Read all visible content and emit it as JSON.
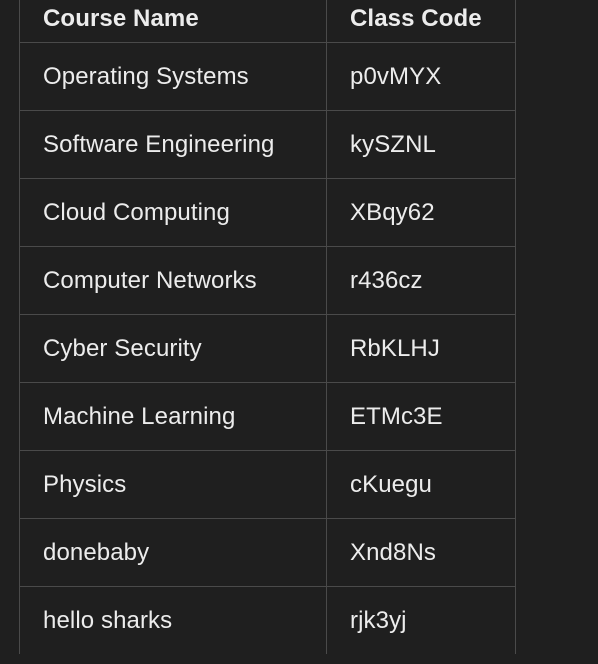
{
  "table": {
    "headers": [
      "Course Name",
      "Class Code"
    ],
    "rows": [
      [
        "Operating Systems",
        "p0vMYX"
      ],
      [
        "Software Engineering",
        "kySZNL"
      ],
      [
        "Cloud Computing",
        "XBqy62"
      ],
      [
        "Computer Networks",
        "r436cz"
      ],
      [
        "Cyber Security",
        "RbKLHJ"
      ],
      [
        "Machine Learning",
        "ETMc3E"
      ],
      [
        "Physics",
        "cKuegu"
      ],
      [
        "donebaby",
        "Xnd8Ns"
      ],
      [
        "hello sharks",
        "rjk3yj"
      ]
    ]
  },
  "colors": {
    "background": "#1f1f1f",
    "text": "#ececec",
    "border": "#4a4a4a"
  }
}
